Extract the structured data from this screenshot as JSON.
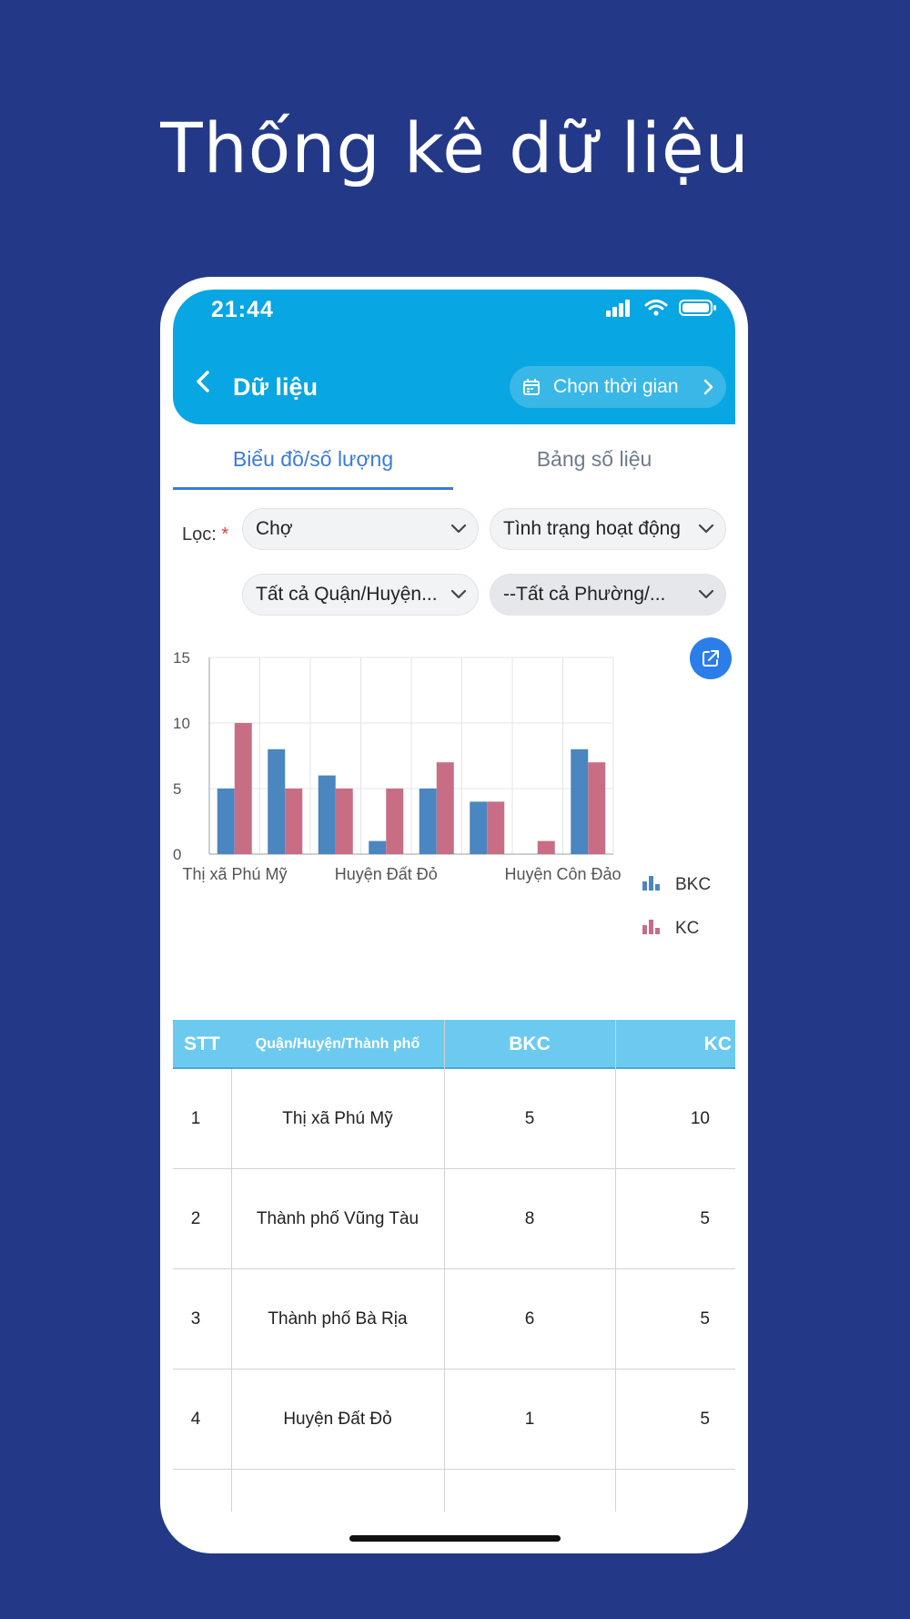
{
  "promo": {
    "title": "Thống kê dữ liệu"
  },
  "status_bar": {
    "time": "21:44"
  },
  "header": {
    "title": "Dữ liệu",
    "time_picker_label": "Chọn thời gian"
  },
  "tabs": [
    {
      "label": "Biểu đồ/số lượng",
      "active": true
    },
    {
      "label": "Bảng số liệu",
      "active": false
    }
  ],
  "filters": {
    "label": "Lọc:",
    "required_mark": "*",
    "type": "Chợ",
    "status": "Tình trạng hoạt động",
    "district": "Tất cả Quận/Huyện...",
    "ward": "--Tất cả Phường/..."
  },
  "colors": {
    "accent": "#08a6e2",
    "bkc": "#4a86c0",
    "kc": "#c76e85",
    "background": "#233987"
  },
  "chart_data": {
    "type": "bar",
    "categories": [
      "Thị xã Phú Mỹ",
      "Thành phố Vũng Tàu",
      "Thành phố Bà Rịa",
      "Huyện Đất Đỏ",
      "",
      "",
      "",
      "Huyện Côn Đảo"
    ],
    "visible_tick_labels": [
      "Thị xã Phú Mỹ",
      "Huyện Đất Đỏ",
      "Huyện Côn Đảo"
    ],
    "series": [
      {
        "name": "BKC",
        "values": [
          5,
          8,
          6,
          1,
          5,
          4,
          0,
          8
        ]
      },
      {
        "name": "KC",
        "values": [
          10,
          5,
          5,
          5,
          7,
          4,
          1,
          7
        ]
      }
    ],
    "yticks": [
      0,
      5,
      10,
      15
    ],
    "ylim": [
      0,
      15
    ],
    "grid": true,
    "legend_position": "right"
  },
  "table": {
    "headers": [
      "STT",
      "Quận/Huyện/Thành phố",
      "BKC",
      "KC"
    ],
    "rows": [
      [
        "1",
        "Thị xã Phú Mỹ",
        "5",
        "10"
      ],
      [
        "2",
        "Thành phố Vũng Tàu",
        "8",
        "5"
      ],
      [
        "3",
        "Thành phố Bà Rịa",
        "6",
        "5"
      ],
      [
        "4",
        "Huyện Đất Đỏ",
        "1",
        "5"
      ]
    ]
  }
}
